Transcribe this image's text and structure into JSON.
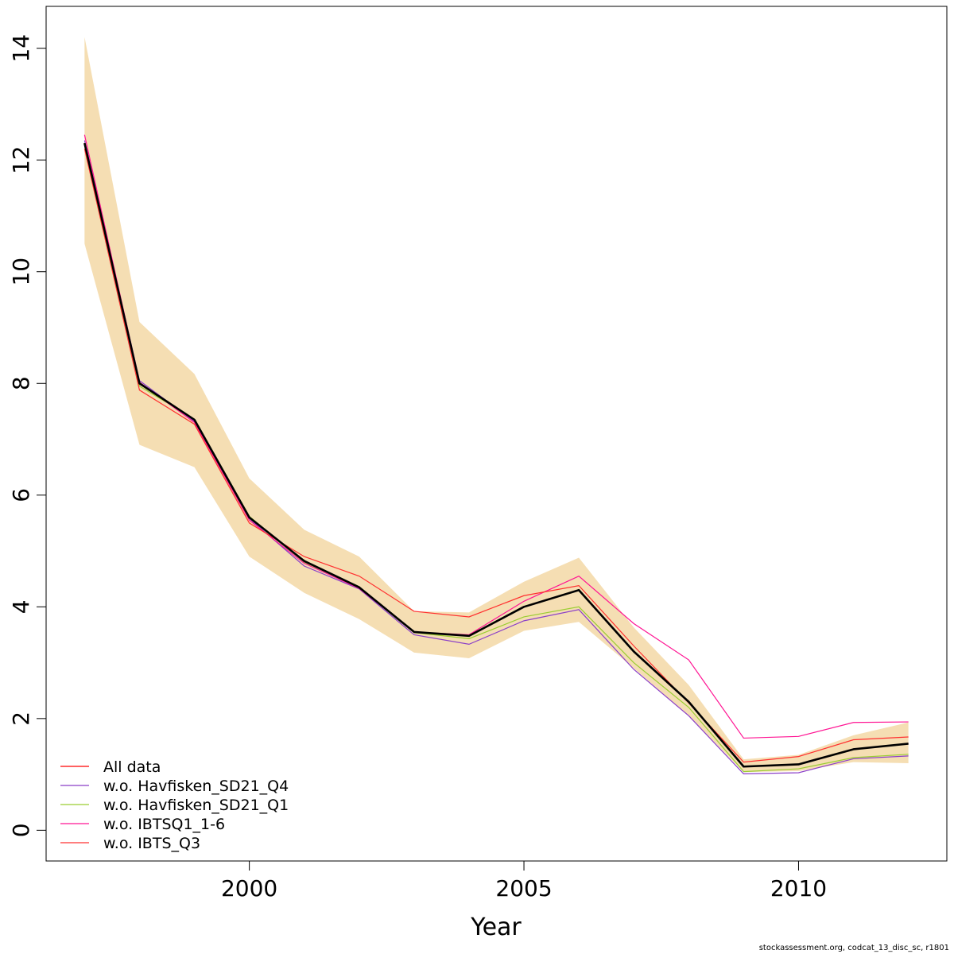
{
  "chart_data": {
    "type": "line",
    "xlabel": "Year",
    "ylabel": "",
    "xlim": [
      1996.3,
      2012.7
    ],
    "ylim": [
      -0.55,
      14.75
    ],
    "x_ticks": [
      2000,
      2005,
      2010
    ],
    "y_ticks": [
      0,
      2,
      4,
      6,
      8,
      10,
      12,
      14
    ],
    "grid": false,
    "legend_position": "bottom-left",
    "x": [
      1997,
      1998,
      1999,
      2000,
      2001,
      2002,
      2003,
      2004,
      2005,
      2006,
      2007,
      2008,
      2009,
      2010,
      2011,
      2012
    ],
    "band": {
      "color": "#f5deb3",
      "lower": [
        10.5,
        6.9,
        6.5,
        4.9,
        4.25,
        3.78,
        3.18,
        3.08,
        3.57,
        3.73,
        2.9,
        2.05,
        1.04,
        1.06,
        1.22,
        1.2
      ],
      "upper": [
        14.2,
        9.1,
        8.17,
        6.3,
        5.38,
        4.9,
        3.92,
        3.9,
        4.45,
        4.88,
        3.63,
        2.6,
        1.27,
        1.35,
        1.7,
        1.93
      ]
    },
    "main_line": {
      "color": "#000000",
      "values": [
        12.3,
        8.0,
        7.35,
        5.6,
        4.82,
        4.35,
        3.55,
        3.48,
        4.0,
        4.3,
        3.2,
        2.3,
        1.14,
        1.18,
        1.45,
        1.55
      ]
    },
    "series": [
      {
        "name": "All data",
        "color": "#ff0000",
        "values": [
          12.3,
          8.0,
          7.35,
          5.6,
          4.82,
          4.35,
          3.55,
          3.48,
          4.0,
          4.3,
          3.2,
          2.3,
          1.14,
          1.18,
          1.45,
          1.55
        ]
      },
      {
        "name": "w.o. Havfisken_SD21_Q4",
        "color": "#8b3fc8",
        "values": [
          12.35,
          8.05,
          7.32,
          5.58,
          4.73,
          4.32,
          3.5,
          3.33,
          3.75,
          3.95,
          2.88,
          2.05,
          1.01,
          1.03,
          1.28,
          1.33
        ]
      },
      {
        "name": "w.o. Havfisken_SD21_Q1",
        "color": "#9acd32",
        "values": [
          12.28,
          7.95,
          7.36,
          5.62,
          4.8,
          4.36,
          3.54,
          3.43,
          3.82,
          4.0,
          3.0,
          2.2,
          1.05,
          1.1,
          1.3,
          1.36
        ]
      },
      {
        "name": "w.o. IBTSQ1_1-6",
        "color": "#ff1493",
        "values": [
          12.45,
          8.02,
          7.3,
          5.55,
          4.78,
          4.33,
          3.55,
          3.5,
          4.1,
          4.55,
          3.7,
          3.05,
          1.65,
          1.68,
          1.93,
          1.94
        ]
      },
      {
        "name": "w.o. IBTS_Q3",
        "color": "#ff3030",
        "values": [
          12.2,
          7.88,
          7.27,
          5.5,
          4.9,
          4.55,
          3.92,
          3.82,
          4.2,
          4.38,
          3.3,
          2.28,
          1.22,
          1.32,
          1.62,
          1.67
        ]
      }
    ]
  },
  "footer": {
    "credit": "stockassessment.org, codcat_13_disc_sc, r1801"
  }
}
